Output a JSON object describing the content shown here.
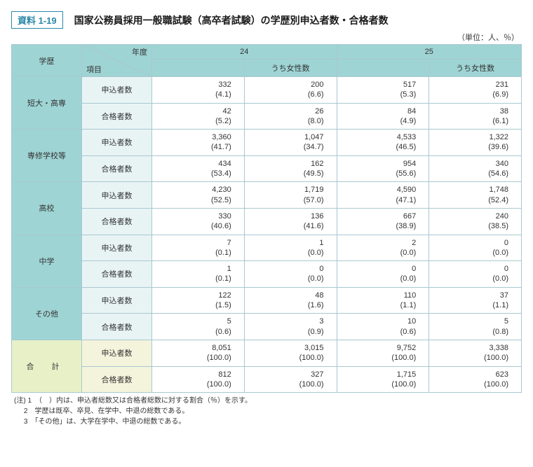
{
  "badge": "資料 1-19",
  "title": "国家公務員採用一般職試験（高卒者試験）の学歴別申込者数・合格者数",
  "unit": "（単位：人、％）",
  "header": {
    "education": "学歴",
    "year": "年度",
    "item": "項目",
    "y24": "24",
    "y25": "25",
    "female": "うち女性数"
  },
  "itemLabels": {
    "apply": "申込者数",
    "pass": "合格者数"
  },
  "rows": [
    {
      "cat": "短大・高専",
      "apply": {
        "y24": "332",
        "y24p": "(4.1)",
        "y24f": "200",
        "y24fp": "(6.6)",
        "y25": "517",
        "y25p": "(5.3)",
        "y25f": "231",
        "y25fp": "(6.9)"
      },
      "pass": {
        "y24": "42",
        "y24p": "(5.2)",
        "y24f": "26",
        "y24fp": "(8.0)",
        "y25": "84",
        "y25p": "(4.9)",
        "y25f": "38",
        "y25fp": "(6.1)"
      }
    },
    {
      "cat": "専修学校等",
      "apply": {
        "y24": "3,360",
        "y24p": "(41.7)",
        "y24f": "1,047",
        "y24fp": "(34.7)",
        "y25": "4,533",
        "y25p": "(46.5)",
        "y25f": "1,322",
        "y25fp": "(39.6)"
      },
      "pass": {
        "y24": "434",
        "y24p": "(53.4)",
        "y24f": "162",
        "y24fp": "(49.5)",
        "y25": "954",
        "y25p": "(55.6)",
        "y25f": "340",
        "y25fp": "(54.6)"
      }
    },
    {
      "cat": "高校",
      "apply": {
        "y24": "4,230",
        "y24p": "(52.5)",
        "y24f": "1,719",
        "y24fp": "(57.0)",
        "y25": "4,590",
        "y25p": "(47.1)",
        "y25f": "1,748",
        "y25fp": "(52.4)"
      },
      "pass": {
        "y24": "330",
        "y24p": "(40.6)",
        "y24f": "136",
        "y24fp": "(41.6)",
        "y25": "667",
        "y25p": "(38.9)",
        "y25f": "240",
        "y25fp": "(38.5)"
      }
    },
    {
      "cat": "中学",
      "apply": {
        "y24": "7",
        "y24p": "(0.1)",
        "y24f": "1",
        "y24fp": "(0.0)",
        "y25": "2",
        "y25p": "(0.0)",
        "y25f": "0",
        "y25fp": "(0.0)"
      },
      "pass": {
        "y24": "1",
        "y24p": "(0.1)",
        "y24f": "0",
        "y24fp": "(0.0)",
        "y25": "0",
        "y25p": "(0.0)",
        "y25f": "0",
        "y25fp": "(0.0)"
      }
    },
    {
      "cat": "その他",
      "apply": {
        "y24": "122",
        "y24p": "(1.5)",
        "y24f": "48",
        "y24fp": "(1.6)",
        "y25": "110",
        "y25p": "(1.1)",
        "y25f": "37",
        "y25fp": "(1.1)"
      },
      "pass": {
        "y24": "5",
        "y24p": "(0.6)",
        "y24f": "3",
        "y24fp": "(0.9)",
        "y25": "10",
        "y25p": "(0.6)",
        "y25f": "5",
        "y25fp": "(0.8)"
      }
    }
  ],
  "total": {
    "cat": "合 計",
    "apply": {
      "y24": "8,051",
      "y24p": "(100.0)",
      "y24f": "3,015",
      "y24fp": "(100.0)",
      "y25": "9,752",
      "y25p": "(100.0)",
      "y25f": "3,338",
      "y25fp": "(100.0)"
    },
    "pass": {
      "y24": "812",
      "y24p": "(100.0)",
      "y24f": "327",
      "y24fp": "(100.0)",
      "y25": "1,715",
      "y25p": "(100.0)",
      "y25f": "623",
      "y25fp": "(100.0)"
    }
  },
  "notes": {
    "lead": "(注)",
    "n1": "1　（　）内は、申込者総数又は合格者総数に対する割合（％）を示す。",
    "n2": "2　学歴は既卒、卒見、在学中、中退の総数である。",
    "n3": "3　「その他」は、大学在学中、中退の総数である。"
  }
}
